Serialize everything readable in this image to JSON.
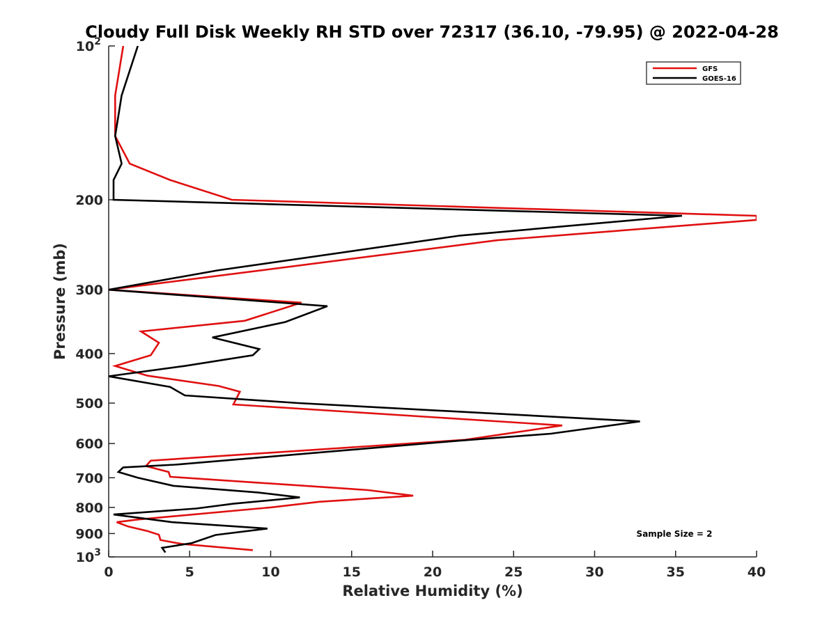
{
  "chart_data": {
    "type": "line",
    "title": "Cloudy Full Disk Weekly RH STD over 72317 (36.10, -79.95) @ 2022-04-28",
    "xlabel": "Relative Humidity (%)",
    "ylabel": "Pressure (mb)",
    "xlim": [
      0,
      40
    ],
    "ylim": [
      100,
      1000
    ],
    "yscale": "log",
    "y_reversed": true,
    "grid": false,
    "legend_position": "top-right",
    "x_ticks": [
      "0",
      "5",
      "10",
      "15",
      "20",
      "25",
      "30",
      "35",
      "40"
    ],
    "y_ticks": [
      {
        "value": 100,
        "base": "10",
        "exp": "2"
      },
      {
        "value": 200,
        "label": "200"
      },
      {
        "value": 300,
        "label": "300"
      },
      {
        "value": 400,
        "label": "400"
      },
      {
        "value": 500,
        "label": "500"
      },
      {
        "value": 600,
        "label": "600"
      },
      {
        "value": 700,
        "label": "700"
      },
      {
        "value": 800,
        "label": "800"
      },
      {
        "value": 900,
        "label": "900"
      },
      {
        "value": 1000,
        "base": "10",
        "exp": "3"
      }
    ],
    "annotation": "Sample Size = 2",
    "series": [
      {
        "name": "GFS",
        "color": "#e01010",
        "points": [
          [
            0.9,
            100
          ],
          [
            0.4,
            125
          ],
          [
            0.4,
            150
          ],
          [
            1.3,
            170
          ],
          [
            3.8,
            183
          ],
          [
            7.6,
            200
          ],
          [
            40.0,
            215
          ],
          [
            40.0,
            219
          ],
          [
            24.0,
            240
          ],
          [
            0.0,
            300
          ],
          [
            11.9,
            318
          ],
          [
            8.4,
            345
          ],
          [
            2.0,
            362
          ],
          [
            3.1,
            381
          ],
          [
            2.6,
            403
          ],
          [
            0.4,
            423
          ],
          [
            2.4,
            442
          ],
          [
            6.8,
            463
          ],
          [
            8.1,
            475
          ],
          [
            7.7,
            503
          ],
          [
            28.0,
            553
          ],
          [
            22.0,
            590
          ],
          [
            2.6,
            648
          ],
          [
            2.3,
            664
          ],
          [
            3.7,
            682
          ],
          [
            3.8,
            697
          ],
          [
            16.0,
            740
          ],
          [
            18.8,
            759
          ],
          [
            13.0,
            780
          ],
          [
            10.0,
            800
          ],
          [
            1.8,
            845
          ],
          [
            0.5,
            855
          ],
          [
            1.2,
            872
          ],
          [
            2.4,
            890
          ],
          [
            3.1,
            905
          ],
          [
            3.2,
            927
          ],
          [
            4.5,
            943
          ],
          [
            8.9,
            970
          ]
        ]
      },
      {
        "name": "GOES-16",
        "color": "#000000",
        "points": [
          [
            1.8,
            100
          ],
          [
            0.8,
            125
          ],
          [
            0.4,
            150
          ],
          [
            0.8,
            170
          ],
          [
            0.3,
            183
          ],
          [
            0.3,
            200
          ],
          [
            35.4,
            215
          ],
          [
            21.7,
            235
          ],
          [
            6.7,
            275
          ],
          [
            0.0,
            300
          ],
          [
            13.5,
            323
          ],
          [
            10.9,
            347
          ],
          [
            6.4,
            372
          ],
          [
            9.3,
            392
          ],
          [
            8.9,
            403
          ],
          [
            4.7,
            423
          ],
          [
            0.0,
            443
          ],
          [
            3.8,
            465
          ],
          [
            4.7,
            483
          ],
          [
            11.7,
            500
          ],
          [
            32.8,
            543
          ],
          [
            27.3,
            574
          ],
          [
            21.7,
            592
          ],
          [
            4.1,
            660
          ],
          [
            0.9,
            668
          ],
          [
            0.6,
            682
          ],
          [
            1.8,
            700
          ],
          [
            4.0,
            726
          ],
          [
            9.2,
            748
          ],
          [
            11.8,
            765
          ],
          [
            7.7,
            787
          ],
          [
            5.4,
            804
          ],
          [
            0.3,
            826
          ],
          [
            3.9,
            855
          ],
          [
            9.8,
            880
          ],
          [
            6.6,
            906
          ],
          [
            5.1,
            940
          ],
          [
            3.3,
            960
          ],
          [
            3.5,
            980
          ]
        ]
      }
    ]
  }
}
